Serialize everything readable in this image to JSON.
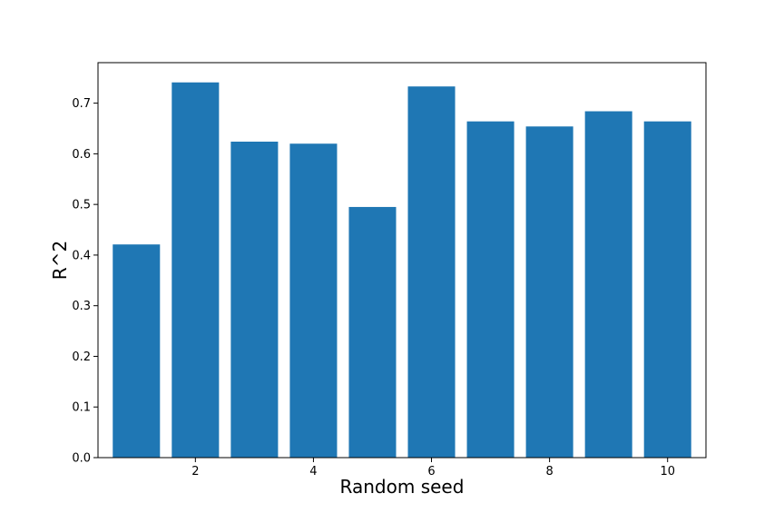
{
  "chart_data": {
    "type": "bar",
    "title": "",
    "xlabel": "Random seed",
    "ylabel": "R^2",
    "categories": [
      1,
      2,
      3,
      4,
      5,
      6,
      7,
      8,
      9,
      10
    ],
    "values": [
      0.421,
      0.741,
      0.624,
      0.62,
      0.495,
      0.733,
      0.664,
      0.654,
      0.684,
      0.664
    ],
    "xlim": [
      0.35,
      10.65
    ],
    "ylim": [
      0.0,
      0.78
    ],
    "xticks": [
      2,
      4,
      6,
      8,
      10
    ],
    "yticks": [
      0.0,
      0.1,
      0.2,
      0.3,
      0.4,
      0.5,
      0.6,
      0.7
    ],
    "xtick_labels": [
      "2",
      "4",
      "6",
      "8",
      "10"
    ],
    "ytick_labels": [
      "0.0",
      "0.1",
      "0.2",
      "0.3",
      "0.4",
      "0.5",
      "0.6",
      "0.7"
    ],
    "bar_color": "#1f77b4",
    "grid": false,
    "legend": "none"
  }
}
